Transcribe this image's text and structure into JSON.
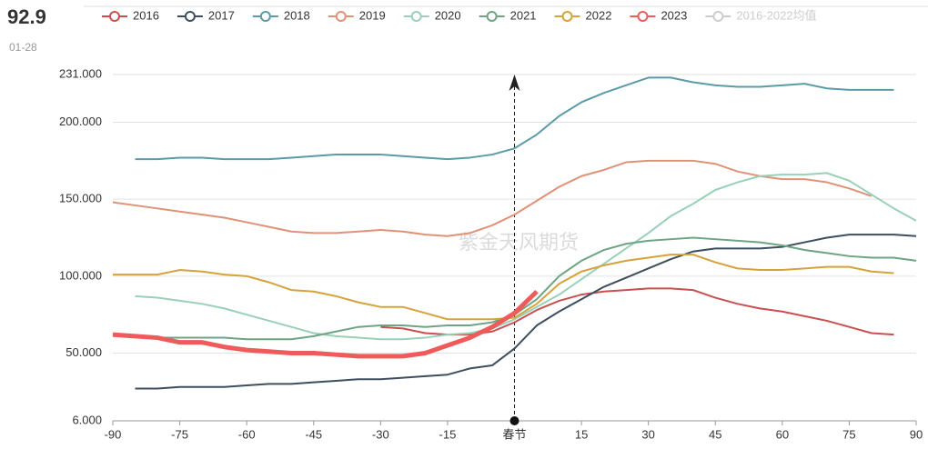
{
  "header": {
    "value": "92.9",
    "date": "01-28"
  },
  "watermark": "紫金天风期货",
  "chart_data": {
    "type": "line",
    "x": [
      -90,
      -85,
      -80,
      -75,
      -70,
      -65,
      -60,
      -55,
      -50,
      -45,
      -40,
      -35,
      -30,
      -25,
      -20,
      -15,
      -10,
      -5,
      0,
      5,
      10,
      15,
      20,
      25,
      30,
      35,
      40,
      45,
      50,
      55,
      60,
      65,
      70,
      75,
      80,
      85,
      90
    ],
    "xlim": [
      -90,
      90
    ],
    "xticks": [
      -90,
      -75,
      -60,
      -45,
      -30,
      -15,
      {
        "value": 0,
        "label": "春节"
      },
      15,
      30,
      45,
      60,
      75,
      90
    ],
    "ylim": [
      6,
      231
    ],
    "yticks": [
      {
        "value": 6,
        "label": "6.000"
      },
      {
        "value": 50,
        "label": "50.000"
      },
      {
        "value": 100,
        "label": "100.000"
      },
      {
        "value": 150,
        "label": "150.000"
      },
      {
        "value": 200,
        "label": "200.000"
      },
      {
        "value": 231,
        "label": "231.000"
      }
    ],
    "grid": true,
    "series": [
      {
        "name": "2016",
        "color": "#c9504f",
        "values": [
          null,
          null,
          null,
          null,
          null,
          null,
          null,
          null,
          null,
          null,
          null,
          null,
          67,
          66,
          63,
          62,
          62,
          64,
          70,
          78,
          84,
          88,
          90,
          91,
          92,
          92,
          91,
          86,
          82,
          79,
          77,
          74,
          71,
          67,
          63,
          62,
          null
        ]
      },
      {
        "name": "2017",
        "color": "#3f4e5f",
        "values": [
          null,
          27,
          27,
          28,
          28,
          28,
          29,
          30,
          30,
          31,
          32,
          33,
          33,
          34,
          35,
          36,
          40,
          42,
          53,
          68,
          77,
          85,
          93,
          99,
          105,
          111,
          116,
          118,
          118,
          118,
          119,
          122,
          125,
          127,
          127,
          127,
          126
        ]
      },
      {
        "name": "2018",
        "color": "#5b9ba7",
        "values": [
          null,
          176,
          176,
          177,
          177,
          176,
          176,
          176,
          177,
          178,
          179,
          179,
          179,
          178,
          177,
          176,
          177,
          179,
          183,
          192,
          204,
          213,
          219,
          224,
          229,
          229,
          226,
          224,
          223,
          223,
          224,
          225,
          222,
          221,
          221,
          221,
          null
        ]
      },
      {
        "name": "2019",
        "color": "#e09278",
        "values": [
          148,
          146,
          144,
          142,
          140,
          138,
          135,
          132,
          129,
          128,
          128,
          129,
          130,
          129,
          127,
          126,
          128,
          133,
          140,
          149,
          158,
          165,
          169,
          174,
          175,
          175,
          175,
          173,
          168,
          165,
          163,
          163,
          161,
          157,
          152,
          null,
          null
        ]
      },
      {
        "name": "2020",
        "color": "#99d0b8",
        "values": [
          null,
          87,
          86,
          84,
          82,
          79,
          75,
          71,
          67,
          63,
          61,
          60,
          59,
          59,
          60,
          62,
          63,
          66,
          72,
          80,
          88,
          98,
          108,
          118,
          128,
          139,
          147,
          156,
          161,
          165,
          166,
          166,
          167,
          162,
          153,
          144,
          136
        ]
      },
      {
        "name": "2021",
        "color": "#6ea484",
        "values": [
          null,
          null,
          60,
          60,
          60,
          60,
          59,
          59,
          59,
          61,
          64,
          67,
          68,
          68,
          67,
          68,
          68,
          70,
          75,
          85,
          100,
          110,
          117,
          121,
          123,
          124,
          125,
          124,
          123,
          122,
          120,
          117,
          115,
          113,
          112,
          112,
          110
        ]
      },
      {
        "name": "2022",
        "color": "#d5a23b",
        "values": [
          101,
          101,
          101,
          104,
          103,
          101,
          100,
          96,
          91,
          90,
          87,
          83,
          80,
          80,
          76,
          72,
          72,
          72,
          73,
          82,
          95,
          103,
          107,
          110,
          112,
          114,
          114,
          109,
          105,
          104,
          104,
          105,
          106,
          106,
          103,
          102,
          null
        ]
      },
      {
        "name": "2023",
        "color": "#ef5a5a",
        "values": [
          62,
          61,
          60,
          57,
          57,
          54,
          52,
          51,
          50,
          50,
          49,
          48,
          48,
          48,
          50,
          55,
          60,
          67,
          76,
          90,
          null,
          null,
          null,
          null,
          null,
          null,
          null,
          null,
          null,
          null,
          null,
          null,
          null,
          null,
          null,
          null,
          null
        ]
      }
    ],
    "hidden_series": [
      {
        "name": "2016-2022均值",
        "color": "#cccccc"
      }
    ]
  }
}
